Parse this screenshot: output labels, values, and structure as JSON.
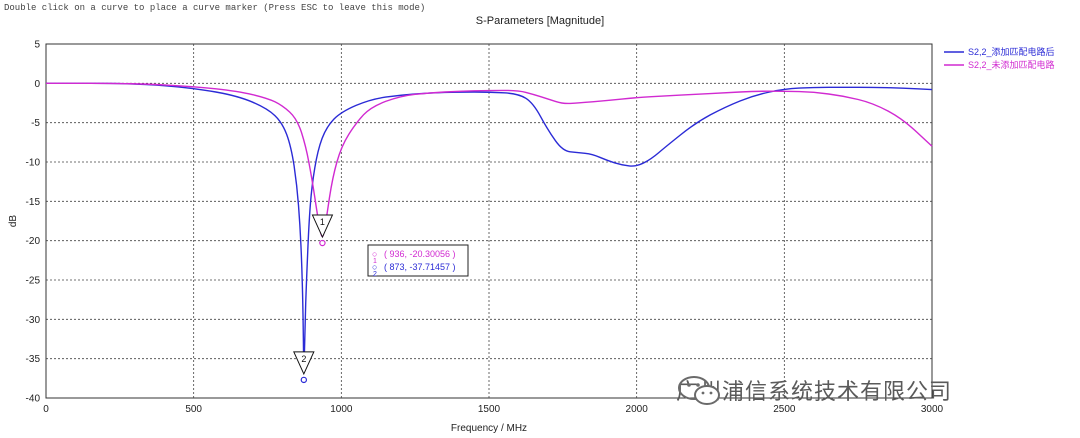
{
  "hint_text": "Double click on a curve to place a curve marker (Press ESC to leave this mode)",
  "chart_data": {
    "type": "line",
    "title": "S-Parameters [Magnitude]",
    "xlabel": "Frequency / MHz",
    "ylabel": "dB",
    "xlim": [
      0,
      3000
    ],
    "ylim": [
      -40,
      5
    ],
    "xticks": [
      "0",
      "500",
      "1000",
      "1500",
      "2000",
      "2500",
      "3000"
    ],
    "yticks": [
      "5",
      "0",
      "-5",
      "-10",
      "-15",
      "-20",
      "-25",
      "-30",
      "-35",
      "-40"
    ],
    "grid": true,
    "legend_position": "top-right",
    "series": [
      {
        "name": "S2,2_添加匹配电路后",
        "color": "#2b2bd6",
        "points": [
          [
            0,
            0
          ],
          [
            300,
            0
          ],
          [
            500,
            -0.6
          ],
          [
            650,
            -1.6
          ],
          [
            750,
            -3.2
          ],
          [
            800,
            -5
          ],
          [
            830,
            -8
          ],
          [
            850,
            -13
          ],
          [
            860,
            -18
          ],
          [
            866,
            -23
          ],
          [
            870,
            -28
          ],
          [
            873,
            -37.7
          ],
          [
            877,
            -31
          ],
          [
            882,
            -25
          ],
          [
            890,
            -18
          ],
          [
            900,
            -13
          ],
          [
            920,
            -8.5
          ],
          [
            950,
            -5.5
          ],
          [
            1000,
            -3.6
          ],
          [
            1100,
            -2
          ],
          [
            1200,
            -1.5
          ],
          [
            1300,
            -1.2
          ],
          [
            1400,
            -1.1
          ],
          [
            1500,
            -1.1
          ],
          [
            1600,
            -1.3
          ],
          [
            1650,
            -2.5
          ],
          [
            1700,
            -6
          ],
          [
            1750,
            -8.6
          ],
          [
            1800,
            -8.8
          ],
          [
            1850,
            -9
          ],
          [
            1900,
            -9.8
          ],
          [
            1950,
            -10.4
          ],
          [
            2000,
            -10.6
          ],
          [
            2050,
            -9.6
          ],
          [
            2100,
            -8
          ],
          [
            2200,
            -5
          ],
          [
            2300,
            -3
          ],
          [
            2400,
            -1.5
          ],
          [
            2500,
            -0.7
          ],
          [
            2600,
            -0.5
          ],
          [
            2700,
            -0.5
          ],
          [
            2800,
            -0.5
          ],
          [
            2900,
            -0.6
          ],
          [
            3000,
            -0.8
          ]
        ]
      },
      {
        "name": "S2,2_未添加匹配电路",
        "color": "#d12ad1",
        "points": [
          [
            0,
            0
          ],
          [
            300,
            0
          ],
          [
            500,
            -0.4
          ],
          [
            650,
            -1
          ],
          [
            750,
            -1.9
          ],
          [
            800,
            -2.8
          ],
          [
            850,
            -4.5
          ],
          [
            880,
            -8
          ],
          [
            900,
            -12
          ],
          [
            920,
            -17
          ],
          [
            936,
            -20.3
          ],
          [
            950,
            -17
          ],
          [
            970,
            -12
          ],
          [
            1000,
            -8
          ],
          [
            1050,
            -5
          ],
          [
            1100,
            -3
          ],
          [
            1200,
            -1.6
          ],
          [
            1300,
            -1.2
          ],
          [
            1400,
            -1
          ],
          [
            1500,
            -0.9
          ],
          [
            1600,
            -0.9
          ],
          [
            1650,
            -1.4
          ],
          [
            1700,
            -2
          ],
          [
            1750,
            -2.6
          ],
          [
            1800,
            -2.5
          ],
          [
            1900,
            -2.2
          ],
          [
            2000,
            -1.8
          ],
          [
            2100,
            -1.6
          ],
          [
            2200,
            -1.4
          ],
          [
            2300,
            -1.2
          ],
          [
            2400,
            -1
          ],
          [
            2500,
            -1
          ],
          [
            2600,
            -1.1
          ],
          [
            2700,
            -1.6
          ],
          [
            2800,
            -2.5
          ],
          [
            2900,
            -4.5
          ],
          [
            3000,
            -8
          ]
        ]
      }
    ],
    "markers": [
      {
        "label": "1",
        "series": 1,
        "x": 936,
        "y": -20.3,
        "text": "( 936, -20.30056 )",
        "legend_sym": "○"
      },
      {
        "label": "2",
        "series": 0,
        "x": 873,
        "y": -37.7,
        "text": "( 873, -37.71457 )",
        "legend_sym": "○"
      }
    ],
    "marker_box_labels": [
      "1",
      "2"
    ]
  },
  "watermark": {
    "text": "广州浦信系统技术有限公司",
    "icon": "wechat-icon"
  }
}
